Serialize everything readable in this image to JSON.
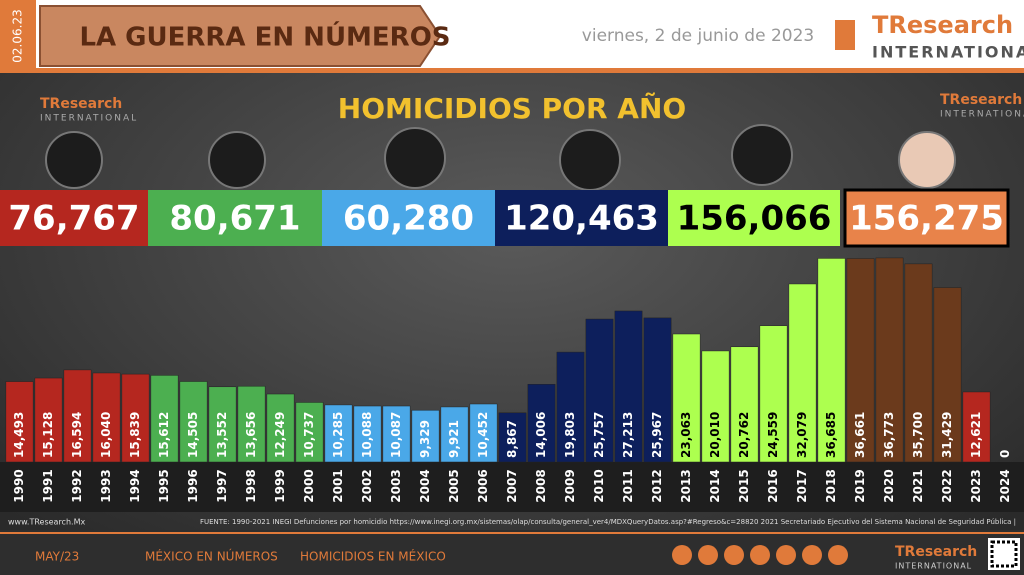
{
  "header": {
    "date_tag": "02.06.23",
    "banner": "LA GUERRA EN NÚMEROS",
    "date": "viernes, 2 de junio de 2023",
    "brand": "TResearch",
    "brand_sub": "INTERNATIONAL"
  },
  "term_totals": [
    {
      "label": "76,767",
      "color": "#b5271f",
      "text_color": "#ffffff"
    },
    {
      "label": "80,671",
      "color": "#4caf50",
      "text_color": "#ffffff"
    },
    {
      "label": "60,280",
      "color": "#4aa8e8",
      "text_color": "#ffffff"
    },
    {
      "label": "120,463",
      "color": "#0d1f5c",
      "text_color": "#ffffff"
    },
    {
      "label": "156,066",
      "color": "#adff4f",
      "text_color": "#000000"
    },
    {
      "label": "156,275",
      "color": "#e8834a",
      "text_color": "#ffffff"
    }
  ],
  "chart_data": {
    "type": "bar",
    "title": "HOMICIDIOS POR AÑO",
    "categories": [
      "1990",
      "1991",
      "1992",
      "1993",
      "1994",
      "1995",
      "1996",
      "1997",
      "1998",
      "1999",
      "2000",
      "2001",
      "2002",
      "2003",
      "2004",
      "2005",
      "2006",
      "2007",
      "2008",
      "2009",
      "2010",
      "2011",
      "2012",
      "2013",
      "2014",
      "2015",
      "2016",
      "2017",
      "2018",
      "2019",
      "2020",
      "2021",
      "2022",
      "2023",
      "2024"
    ],
    "values": [
      14493,
      15128,
      16594,
      16040,
      15839,
      15612,
      14505,
      13552,
      13656,
      12249,
      10737,
      10285,
      10088,
      10087,
      9329,
      9921,
      10452,
      8867,
      14006,
      19803,
      25757,
      27213,
      25967,
      23063,
      20010,
      20762,
      24559,
      32079,
      36685,
      36661,
      36773,
      35700,
      31429,
      12621,
      0
    ],
    "value_labels": [
      "14,493",
      "15,128",
      "16,594",
      "16,040",
      "15,839",
      "15,612",
      "14,505",
      "13,552",
      "13,656",
      "12,249",
      "10,737",
      "10,285",
      "10,088",
      "10,087",
      "9,329",
      "9,921",
      "10,452",
      "8,867",
      "14,006",
      "19,803",
      "25,757",
      "27,213",
      "25,967",
      "23,063",
      "20,010",
      "20,762",
      "24,559",
      "32,079",
      "36,685",
      "36,661",
      "36,773",
      "35,700",
      "31,429",
      "12,621",
      "0"
    ],
    "colors": [
      "#b5271f",
      "#b5271f",
      "#b5271f",
      "#b5271f",
      "#b5271f",
      "#4caf50",
      "#4caf50",
      "#4caf50",
      "#4caf50",
      "#4caf50",
      "#4caf50",
      "#4aa8e8",
      "#4aa8e8",
      "#4aa8e8",
      "#4aa8e8",
      "#4aa8e8",
      "#4aa8e8",
      "#0d1f5c",
      "#0d1f5c",
      "#0d1f5c",
      "#0d1f5c",
      "#0d1f5c",
      "#0d1f5c",
      "#adff4f",
      "#adff4f",
      "#adff4f",
      "#adff4f",
      "#adff4f",
      "#adff4f",
      "#6b3a1c",
      "#6b3a1c",
      "#6b3a1c",
      "#6b3a1c",
      "#b5271f",
      "#6b3a1c"
    ],
    "ylim": [
      0,
      40000
    ]
  },
  "footer": {
    "site": "www.TResearch.Mx",
    "source": "FUENTE: 1990-2021 INEGI Defunciones por homicidio https://www.inegi.org.mx/sistemas/olap/consulta/general_ver4/MDXQueryDatos.asp?#Regreso&c=28820  2021 Secretariado Ejecutivo del Sistema Nacional de Seguridad Pública |",
    "links": [
      "MAY/23",
      "MÉXICO EN NÚMEROS",
      "HOMICIDIOS EN MÉXICO"
    ]
  }
}
